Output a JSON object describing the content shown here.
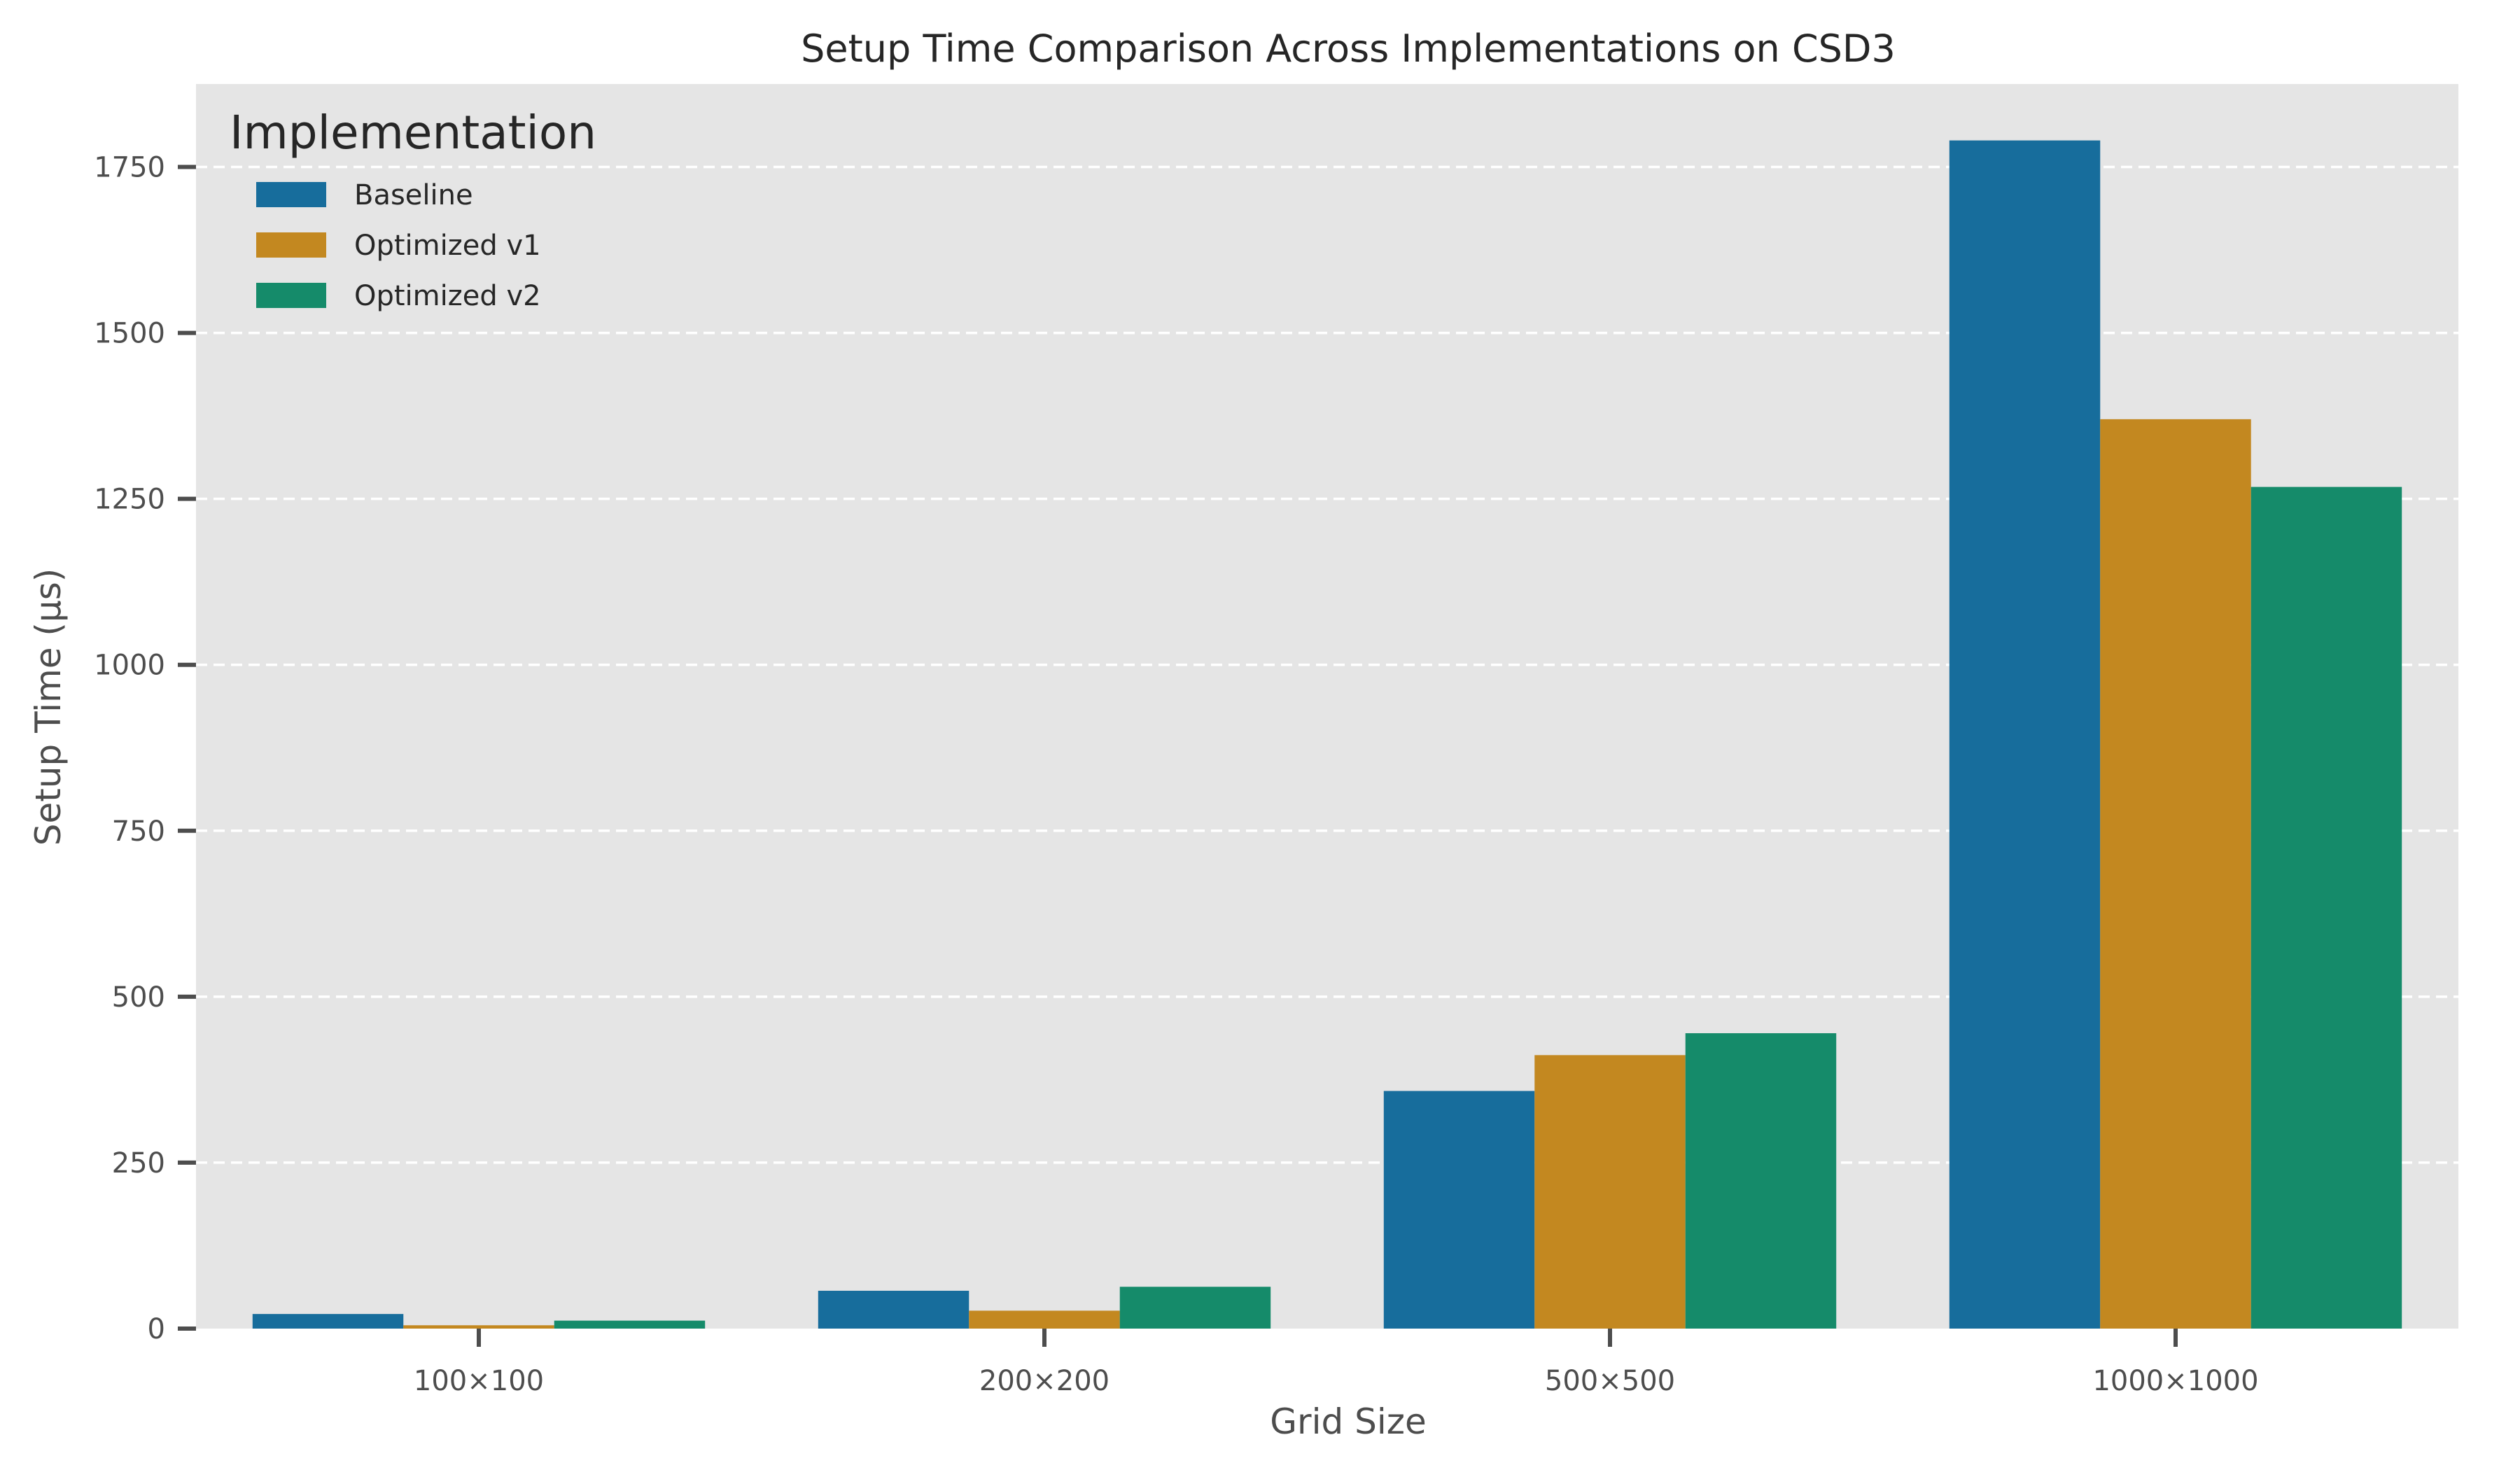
{
  "chart_data": {
    "type": "bar",
    "title": "Setup Time Comparison Across Implementations on CSD3",
    "xlabel": "Grid Size",
    "ylabel": "Setup Time (µs)",
    "categories": [
      "100×100",
      "200×200",
      "500×500",
      "1000×1000"
    ],
    "ylim": [
      0,
      1875
    ],
    "yticks": [
      0,
      250,
      500,
      750,
      1000,
      1250,
      1500,
      1750
    ],
    "grid": "y-dashed",
    "legend": {
      "title": "Implementation",
      "placement": "top-left"
    },
    "series": [
      {
        "name": "Baseline",
        "color": "#176d9c",
        "values": [
          22,
          57,
          358,
          1790
        ]
      },
      {
        "name": "Optimized v1",
        "color": "#c38820",
        "values": [
          5,
          27,
          412,
          1370
        ]
      },
      {
        "name": "Optimized v2",
        "color": "#158b6a",
        "values": [
          12,
          63,
          445,
          1268
        ]
      }
    ],
    "background": "#e5e5e5"
  }
}
